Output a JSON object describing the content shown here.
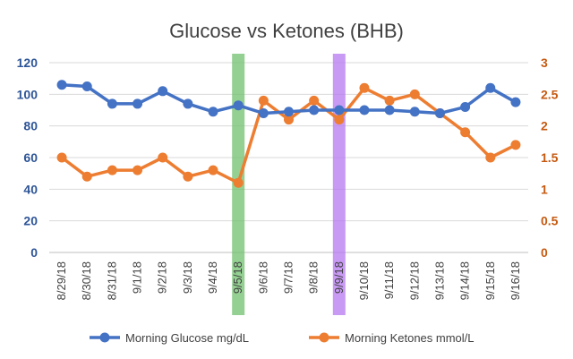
{
  "chart_data": {
    "type": "line",
    "title": "Glucose vs Ketones (BHB)",
    "categories": [
      "8/29/18",
      "8/30/18",
      "8/31/18",
      "9/1/18",
      "9/2/18",
      "9/3/18",
      "9/4/18",
      "9/5/18",
      "9/6/18",
      "9/7/18",
      "9/8/18",
      "9/9/18",
      "9/10/18",
      "9/11/18",
      "9/12/18",
      "9/13/18",
      "9/14/18",
      "9/15/18",
      "9/16/18"
    ],
    "y_left": {
      "ylim": [
        0,
        120
      ],
      "ticks": [
        "0",
        "20",
        "40",
        "60",
        "80",
        "100",
        "120"
      ],
      "color": "#2E5597"
    },
    "y_right": {
      "ylim": [
        0,
        3
      ],
      "ticks": [
        "0",
        "0.5",
        "1",
        "1.5",
        "2",
        "2.5",
        "3"
      ],
      "color": "#C55A11"
    },
    "series": [
      {
        "name": "Morning Glucose mg/dL",
        "axis": "left",
        "color": "#4472C4",
        "values": [
          106,
          105,
          94,
          94,
          102,
          94,
          89,
          93,
          88,
          89,
          90,
          90,
          90,
          90,
          89,
          88,
          92,
          104,
          95
        ]
      },
      {
        "name": "Morning Ketones mmol/L",
        "axis": "right",
        "color": "#ED7D31",
        "values": [
          1.5,
          1.2,
          1.3,
          1.3,
          1.5,
          1.2,
          1.3,
          1.1,
          2.4,
          2.1,
          2.4,
          2.1,
          2.6,
          2.4,
          2.5,
          2.2,
          1.9,
          1.5,
          1.7
        ]
      }
    ],
    "highlights": [
      {
        "category": "9/5/18",
        "color": "#70C06E"
      },
      {
        "category": "9/9/18",
        "color": "#B678F0"
      }
    ],
    "legend_position": "bottom",
    "grid": "horizontal"
  }
}
